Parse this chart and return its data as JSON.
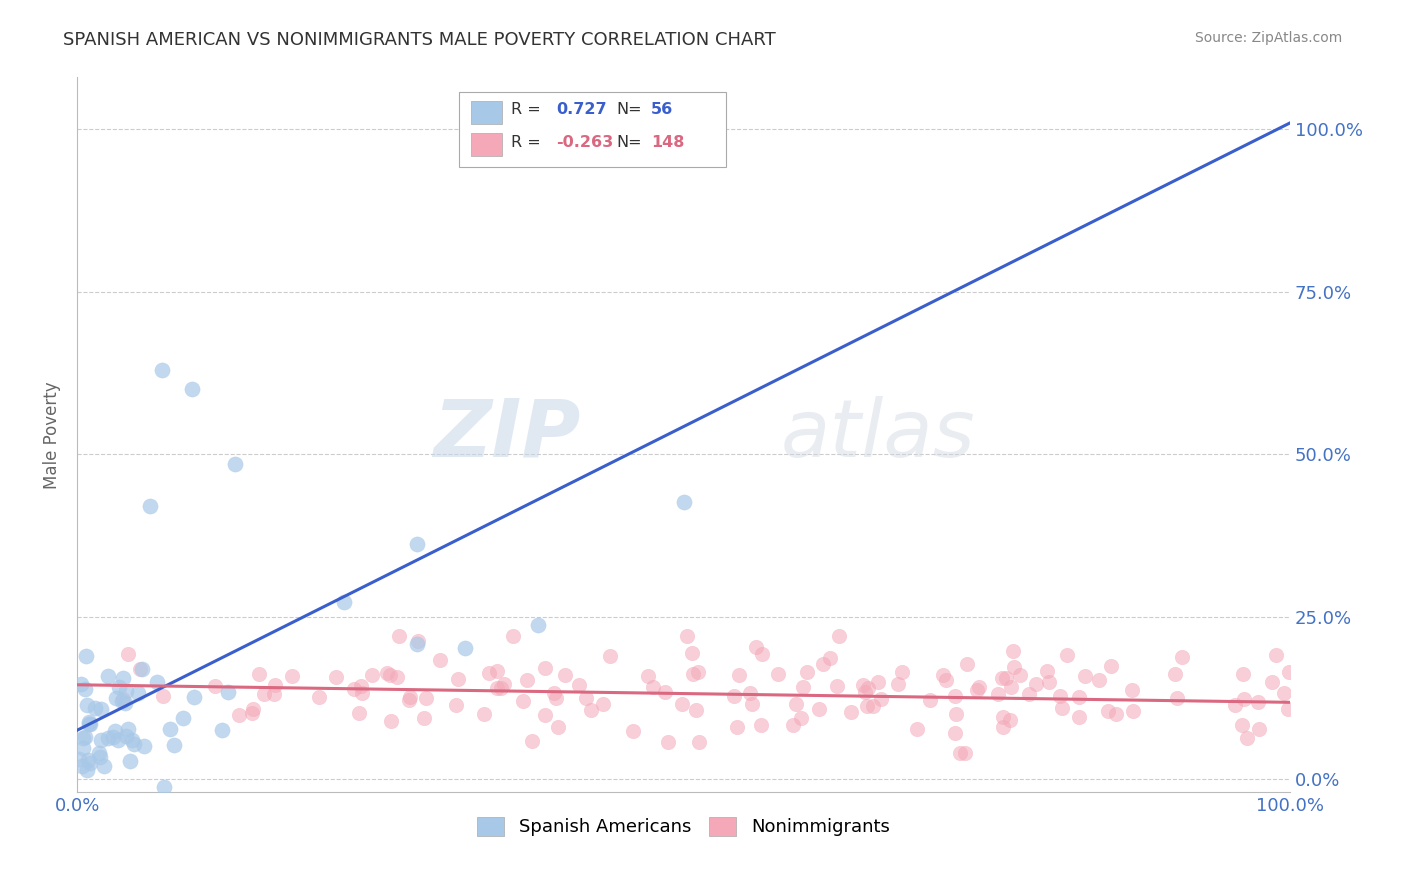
{
  "title": "SPANISH AMERICAN VS NONIMMIGRANTS MALE POVERTY CORRELATION CHART",
  "source": "Source: ZipAtlas.com",
  "ylabel": "Male Poverty",
  "xlim": [
    0,
    1
  ],
  "ylim": [
    -0.02,
    1.08
  ],
  "ytick_labels": [
    "0.0%",
    "25.0%",
    "50.0%",
    "75.0%",
    "100.0%"
  ],
  "ytick_vals": [
    0,
    0.25,
    0.5,
    0.75,
    1.0
  ],
  "xtick_labels": [
    "0.0%",
    "100.0%"
  ],
  "xtick_vals": [
    0,
    1
  ],
  "blue_R": 0.727,
  "blue_N": 56,
  "pink_R": -0.263,
  "pink_N": 148,
  "blue_color": "#a8c8e8",
  "pink_color": "#f4a8b8",
  "blue_line_color": "#3a5fcd",
  "pink_line_color": "#d96880",
  "watermark_zip": "ZIP",
  "watermark_atlas": "atlas",
  "legend_label_blue": "Spanish Americans",
  "legend_label_pink": "Nonimmigrants",
  "blue_line_x0": 0.0,
  "blue_line_y0": 0.075,
  "blue_line_x1": 1.0,
  "blue_line_y1": 1.01,
  "pink_line_x0": 0.0,
  "pink_line_y0": 0.145,
  "pink_line_x1": 1.0,
  "pink_line_y1": 0.118,
  "background_color": "#ffffff",
  "grid_color": "#cccccc",
  "title_color": "#333333",
  "axis_label_color": "#4472c4",
  "title_fontsize": 13,
  "source_fontsize": 10,
  "seed": 99
}
